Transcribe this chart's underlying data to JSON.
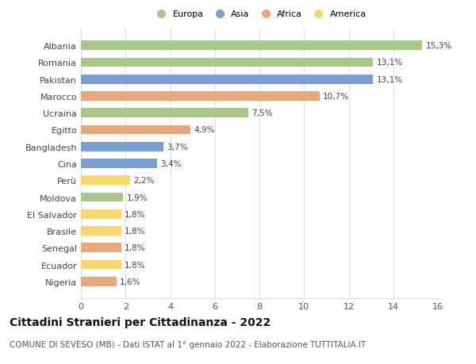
{
  "categories": [
    "Nigeria",
    "Ecuador",
    "Senegal",
    "Brasile",
    "El Salvador",
    "Moldova",
    "Perù",
    "Cina",
    "Bangladesh",
    "Egitto",
    "Ucraina",
    "Marocco",
    "Pakistan",
    "Romania",
    "Albania"
  ],
  "values": [
    1.6,
    1.8,
    1.8,
    1.8,
    1.8,
    1.9,
    2.2,
    3.4,
    3.7,
    4.9,
    7.5,
    10.7,
    13.1,
    13.1,
    15.3
  ],
  "colors": [
    "#e8a87c",
    "#f5d76e",
    "#e8a87c",
    "#f5d76e",
    "#f5d76e",
    "#a8c88a",
    "#f5d76e",
    "#7a9fd4",
    "#7a9fd4",
    "#e8a87c",
    "#a8c88a",
    "#e8a87c",
    "#7a9fd4",
    "#a8c88a",
    "#a8c88a"
  ],
  "labels": [
    "1,6%",
    "1,8%",
    "1,8%",
    "1,8%",
    "1,8%",
    "1,9%",
    "2,2%",
    "3,4%",
    "3,7%",
    "4,9%",
    "7,5%",
    "10,7%",
    "13,1%",
    "13,1%",
    "15,3%"
  ],
  "legend_labels": [
    "Europa",
    "Asia",
    "Africa",
    "America"
  ],
  "legend_colors": [
    "#a8c88a",
    "#7a9fd4",
    "#e8a87c",
    "#f5d76e"
  ],
  "title": "Cittadini Stranieri per Cittadinanza - 2022",
  "subtitle": "COMUNE DI SEVESO (MB) - Dati ISTAT al 1° gennaio 2022 - Elaborazione TUTTITALIA.IT",
  "xlim": [
    0,
    16
  ],
  "xticks": [
    0,
    2,
    4,
    6,
    8,
    10,
    12,
    14,
    16
  ],
  "background_color": "#ffffff",
  "grid_color": "#dddddd",
  "title_fontsize": 10,
  "subtitle_fontsize": 7.5,
  "label_fontsize": 7.5,
  "tick_fontsize": 8,
  "bar_height": 0.55
}
